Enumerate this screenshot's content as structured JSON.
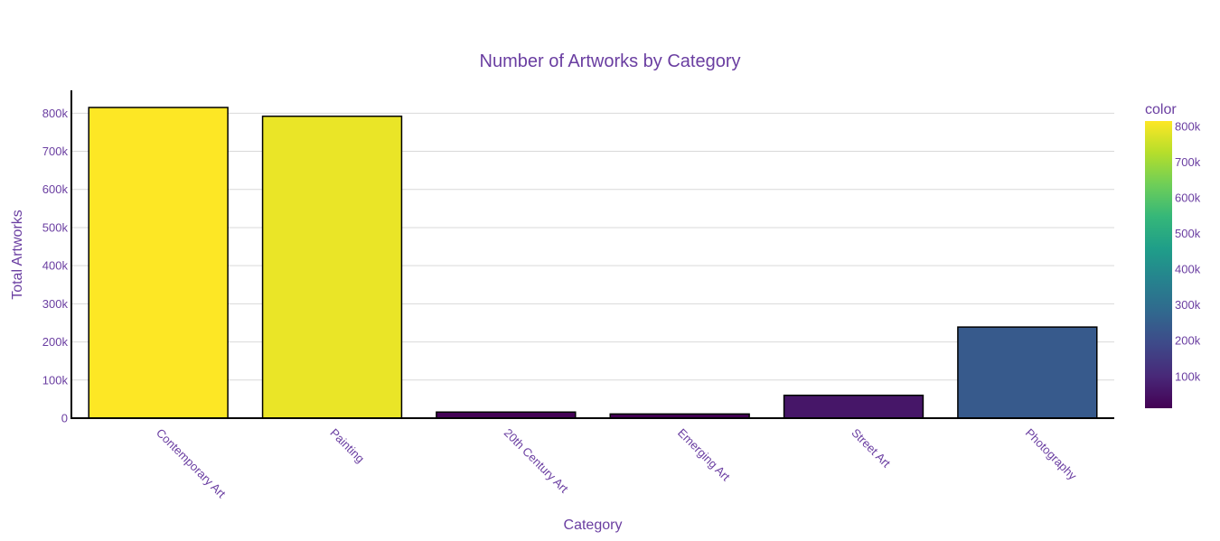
{
  "chart_data": {
    "type": "bar",
    "title": "Number of Artworks by Category",
    "xlabel": "Category",
    "ylabel": "Total Artworks",
    "categories": [
      "Contemporary Art",
      "Painting",
      "20th Century Art",
      "Emerging Art",
      "Street Art",
      "Photography"
    ],
    "values": [
      815000,
      792000,
      16000,
      11000,
      60000,
      239000
    ],
    "ylim": [
      0,
      860000
    ],
    "yticks": [
      0,
      100000,
      200000,
      300000,
      400000,
      500000,
      600000,
      700000,
      800000
    ],
    "ytick_labels": [
      "0",
      "100k",
      "200k",
      "300k",
      "400k",
      "500k",
      "600k",
      "700k",
      "800k"
    ],
    "grid": true,
    "colorscale": "Viridis",
    "colorbar": {
      "title": "color",
      "range": [
        11000,
        815000
      ],
      "ticks": [
        100000,
        200000,
        300000,
        400000,
        500000,
        600000,
        700000,
        800000
      ],
      "tick_labels": [
        "100k",
        "200k",
        "300k",
        "400k",
        "500k",
        "600k",
        "700k",
        "800k"
      ]
    },
    "colors": {
      "text": "#6a3ea1",
      "bar_outline": "#000000",
      "grid": "#d9d9d9"
    }
  }
}
